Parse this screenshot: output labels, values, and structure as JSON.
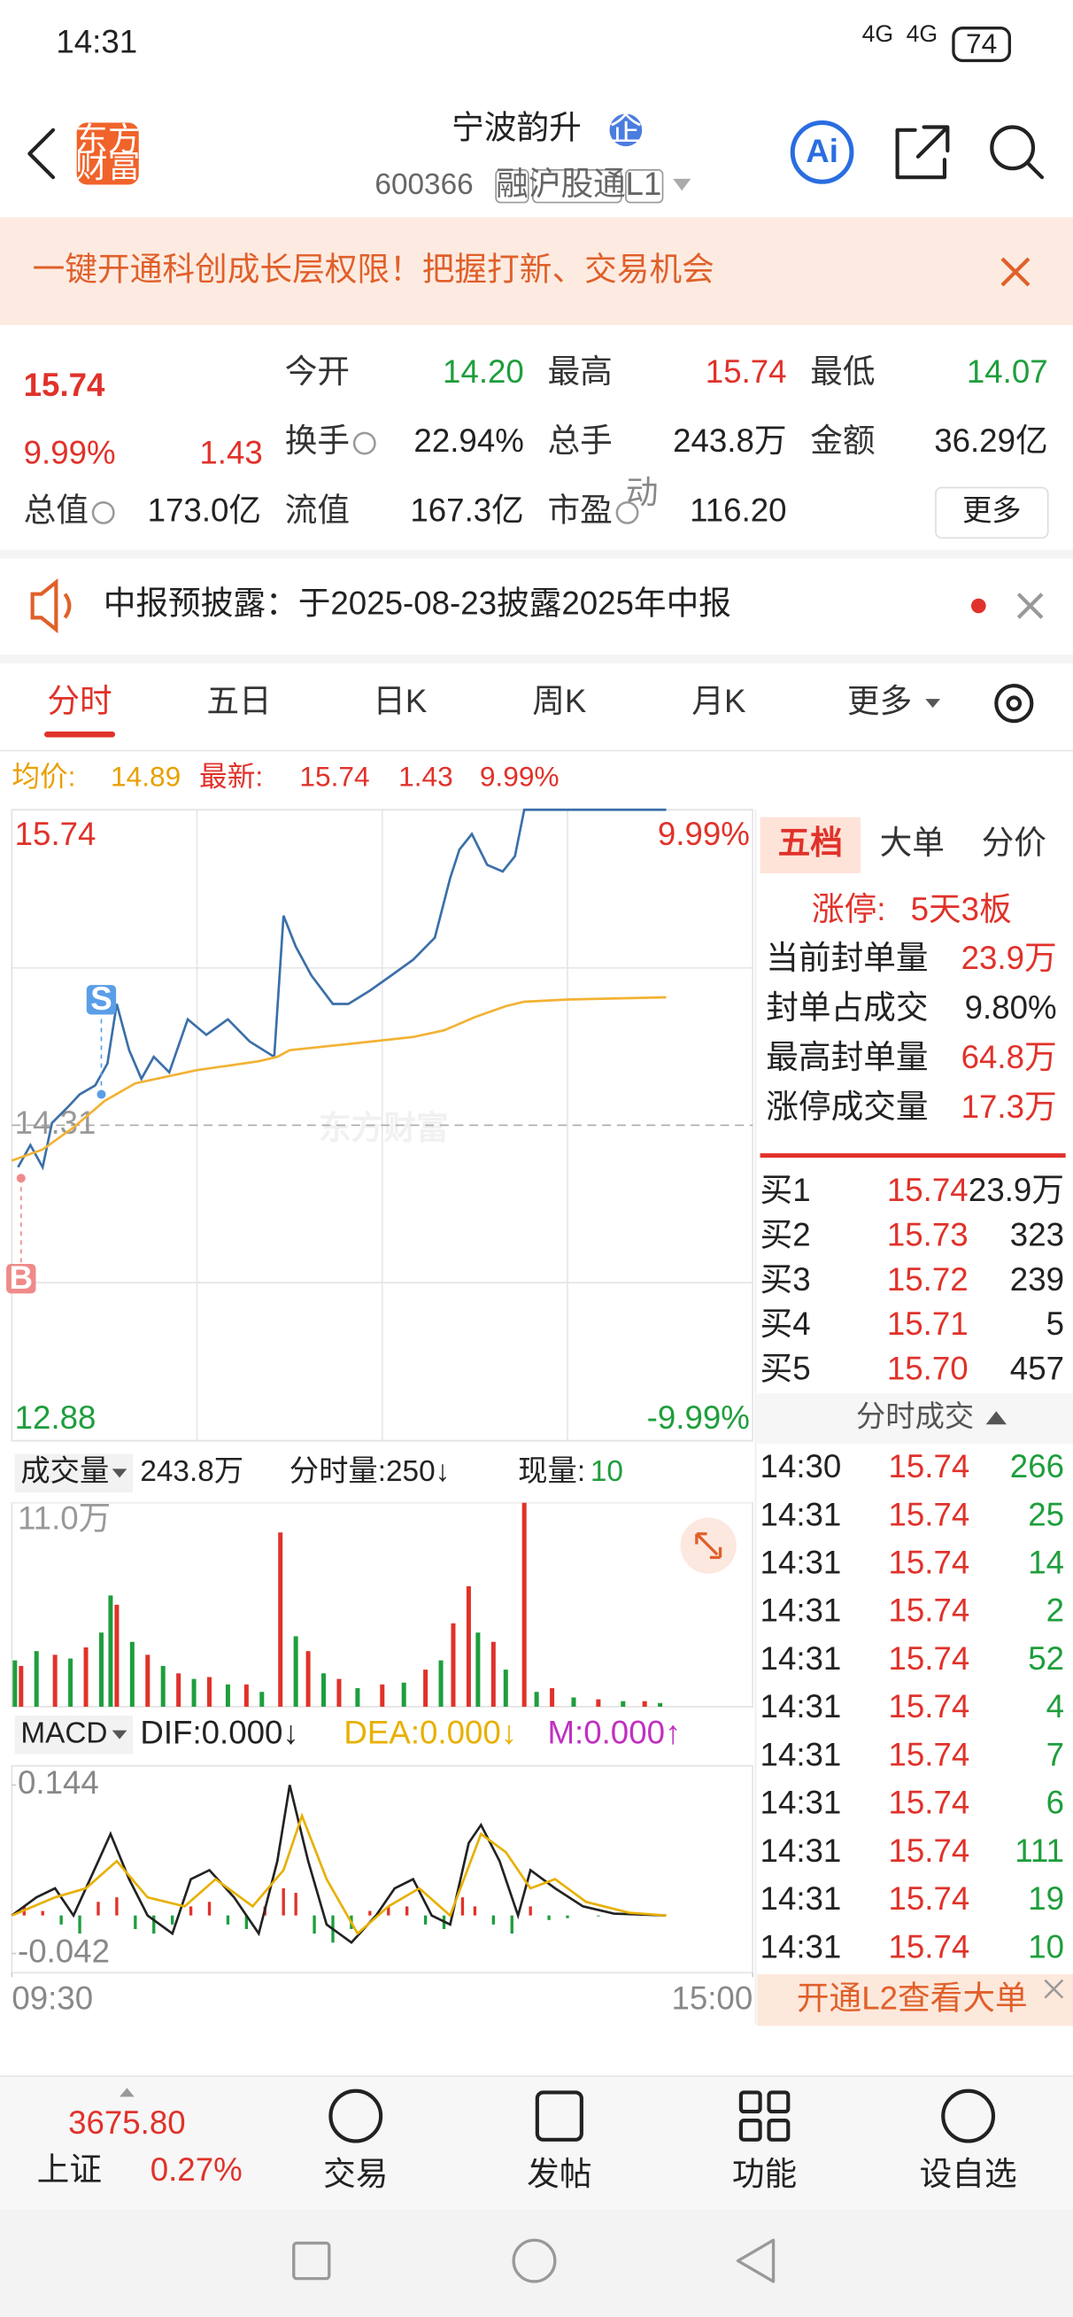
{
  "status_bar": {
    "time": "14:31",
    "signal": "4G",
    "battery": "74"
  },
  "header": {
    "logo": [
      "东方",
      "财富"
    ],
    "title": "宁波韵升",
    "badge": "企",
    "code": "600366",
    "tags": [
      "融",
      "沪股通",
      "L1"
    ],
    "ai": "Ai"
  },
  "promo": {
    "text": "一键开通科创成长层权限！把握打新、交易机会"
  },
  "quote": {
    "price": "15.74",
    "change_pct": "9.99%",
    "change": "1.43",
    "fields": [
      {
        "label": "今开",
        "value": "14.20",
        "color": "#1e9e3c"
      },
      {
        "label": "最高",
        "value": "15.74",
        "color": "#e0322a"
      },
      {
        "label": "最低",
        "value": "14.07",
        "color": "#1e9e3c"
      },
      {
        "label": "换手",
        "value": "22.94%"
      },
      {
        "label": "总手",
        "value": "243.8万"
      },
      {
        "label": "金额",
        "value": "36.29亿"
      },
      {
        "label": "总值",
        "value": "173.0亿"
      },
      {
        "label": "流值",
        "value": "167.3亿"
      },
      {
        "label": "市盈",
        "value": "116.20"
      }
    ],
    "superscript": "动",
    "more": "更多"
  },
  "notice": {
    "text": "中报预披露：于2025-08-23披露2025年中报"
  },
  "tabs": [
    "分时",
    "五日",
    "日K",
    "周K",
    "月K",
    "更多"
  ],
  "summary": {
    "avg_label": "均价:",
    "avg": "14.89",
    "last_label": "最新:",
    "last": "15.74",
    "change": "1.43",
    "change_pct": "9.99%"
  },
  "chart_data": [
    {
      "type": "line",
      "xlim": [
        0,
        240
      ],
      "ylim": [
        12.88,
        15.74
      ],
      "yticks": [
        15.74,
        14.31,
        12.88
      ],
      "y2lim": [
        -9.99,
        9.99
      ],
      "y2ticks": [
        {
          "value": 9.99,
          "label": "9.99%"
        },
        {
          "value": -9.99,
          "label": "-9.99%"
        }
      ],
      "series": [
        {
          "color": "#3b6fa8",
          "x": [
            2,
            6,
            10,
            13,
            18,
            22,
            27,
            31,
            34,
            38,
            42,
            46,
            51,
            57,
            63,
            70,
            77,
            85,
            88,
            92,
            97,
            104,
            109,
            116,
            123,
            130,
            137,
            142,
            145,
            149,
            154,
            159,
            163,
            166,
            212
          ],
          "values": [
            14.12,
            14.22,
            14.12,
            14.32,
            14.39,
            14.45,
            14.49,
            14.59,
            14.86,
            14.65,
            14.52,
            14.62,
            14.55,
            14.79,
            14.72,
            14.79,
            14.69,
            14.62,
            15.26,
            15.12,
            14.99,
            14.86,
            14.86,
            14.92,
            14.99,
            15.06,
            15.16,
            15.43,
            15.56,
            15.63,
            15.49,
            15.46,
            15.53,
            15.74,
            15.74
          ]
        },
        {
          "color": "#f2b233",
          "x": [
            0,
            10,
            20,
            30,
            40,
            50,
            60,
            80,
            86,
            90,
            110,
            130,
            140,
            150,
            160,
            166,
            180,
            212
          ],
          "values": [
            14.15,
            14.2,
            14.3,
            14.42,
            14.5,
            14.53,
            14.56,
            14.6,
            14.62,
            14.65,
            14.68,
            14.71,
            14.74,
            14.8,
            14.85,
            14.87,
            14.88,
            14.89
          ]
        }
      ],
      "annotations": [
        {
          "text": "S",
          "x": 29,
          "y": 14.45,
          "color": "#5a9ee8",
          "position": "above"
        },
        {
          "text": "B",
          "x": 3,
          "y": 14.07,
          "color": "#f08a8a",
          "position": "below"
        }
      ],
      "watermark": "东方财富"
    },
    {
      "type": "bar",
      "title": "成交量",
      "stats": [
        "243.8万",
        "分时量:250↓",
        "现量:"
      ],
      "current": "10",
      "xlim": [
        0,
        240
      ],
      "ylim": [
        0,
        11
      ],
      "yticks": [
        {
          "value": 11,
          "label": "11.0万"
        }
      ],
      "series": [
        {
          "color": "#e0322a",
          "x": [
            3,
            14,
            24,
            34,
            44,
            54,
            64,
            76,
            87,
            96,
            106,
            120,
            134,
            143,
            148,
            156,
            166,
            175,
            190,
            205
          ],
          "values": [
            2.2,
            2.8,
            3.2,
            5.5,
            2.8,
            1.8,
            1.6,
            1.2,
            9.4,
            3.0,
            1.5,
            1.2,
            2.0,
            4.5,
            6.5,
            3.5,
            11.0,
            1.0,
            0.4,
            0.3
          ]
        },
        {
          "color": "#1e9e3c",
          "x": [
            1,
            8,
            19,
            29,
            32,
            39,
            49,
            59,
            70,
            81,
            92,
            101,
            112,
            127,
            139,
            151,
            160,
            170,
            182,
            198,
            210
          ],
          "values": [
            2.5,
            3.0,
            2.6,
            4.0,
            6.0,
            3.5,
            2.2,
            1.5,
            1.2,
            0.8,
            3.8,
            1.8,
            1.0,
            1.3,
            2.5,
            4.0,
            2.0,
            0.8,
            0.5,
            0.3,
            0.2
          ]
        }
      ]
    },
    {
      "type": "macd",
      "title": "MACD",
      "indicators": [
        {
          "text": "DIF:0.000↓",
          "color": "#222222"
        },
        {
          "text": "DEA:0.000↓",
          "color": "#e8b000"
        },
        {
          "text": "M:0.000↑",
          "color": "#c030c0"
        }
      ],
      "xlim": [
        0,
        240
      ],
      "xticks": [
        {
          "value": 0,
          "label": "09:30"
        },
        {
          "value": 240,
          "label": "15:00"
        }
      ],
      "ylim": [
        -0.042,
        0.144
      ],
      "yticks": [
        0.144,
        -0.042
      ],
      "series": [
        {
          "color": "#222222",
          "x": [
            0,
            8,
            14,
            20,
            28,
            32,
            38,
            44,
            52,
            58,
            64,
            72,
            80,
            86,
            90,
            96,
            102,
            110,
            118,
            124,
            130,
            136,
            142,
            148,
            152,
            158,
            164,
            168,
            176,
            185,
            195,
            212
          ],
          "values": [
            0.0,
            0.02,
            0.03,
            0.0,
            0.06,
            0.09,
            0.04,
            0.0,
            -0.02,
            0.04,
            0.05,
            0.02,
            -0.02,
            0.06,
            0.144,
            0.06,
            -0.01,
            -0.03,
            0.0,
            0.03,
            0.04,
            0.0,
            -0.01,
            0.08,
            0.1,
            0.06,
            0.0,
            0.05,
            0.03,
            0.01,
            0.002,
            0.0
          ]
        },
        {
          "color": "#e8b000",
          "x": [
            0,
            14,
            24,
            34,
            44,
            56,
            66,
            78,
            88,
            94,
            102,
            112,
            122,
            132,
            142,
            152,
            160,
            168,
            176,
            186,
            200,
            212
          ],
          "values": [
            0.0,
            0.02,
            0.03,
            0.06,
            0.02,
            0.01,
            0.04,
            0.01,
            0.05,
            0.11,
            0.04,
            -0.02,
            0.01,
            0.03,
            0.0,
            0.09,
            0.07,
            0.03,
            0.04,
            0.015,
            0.003,
            0.0
          ]
        }
      ],
      "histogram": {
        "up_color": "#e0322a",
        "down_color": "#1e9e3c",
        "x": [
          4,
          10,
          16,
          22,
          28,
          34,
          40,
          46,
          52,
          58,
          64,
          70,
          76,
          82,
          88,
          92,
          98,
          104,
          110,
          116,
          122,
          128,
          134,
          140,
          146,
          150,
          156,
          162,
          168,
          174,
          180,
          190
        ],
        "values": [
          0.01,
          0.005,
          -0.01,
          -0.02,
          0.015,
          0.02,
          -0.015,
          -0.02,
          -0.01,
          0.01,
          0.015,
          -0.01,
          -0.015,
          0.01,
          0.03,
          0.025,
          -0.02,
          -0.03,
          -0.015,
          0.005,
          0.01,
          0.01,
          -0.01,
          -0.015,
          0.02,
          0.01,
          -0.01,
          -0.02,
          0.01,
          -0.005,
          -0.003,
          -0.001
        ]
      }
    }
  ],
  "order_panel": {
    "tabs": [
      "五档",
      "大单",
      "分价"
    ],
    "limit_label": "涨停:",
    "limit_value": "5天3板",
    "stats": [
      [
        "当前封单量",
        "23.9万"
      ],
      [
        "封单占成交",
        "9.80%"
      ],
      [
        "最高封单量",
        "64.8万"
      ],
      [
        "涨停成交量",
        "17.3万"
      ]
    ],
    "bids": [
      [
        "买1",
        "15.74",
        "23.9万"
      ],
      [
        "买2",
        "15.73",
        "323"
      ],
      [
        "买3",
        "15.72",
        "239"
      ],
      [
        "买4",
        "15.71",
        "5"
      ],
      [
        "买5",
        "15.70",
        "457"
      ]
    ],
    "trades_title": "分时成交",
    "trades": [
      [
        "14:30",
        "15.74",
        "266"
      ],
      [
        "14:31",
        "15.74",
        "25"
      ],
      [
        "14:31",
        "15.74",
        "14"
      ],
      [
        "14:31",
        "15.74",
        "2"
      ],
      [
        "14:31",
        "15.74",
        "52"
      ],
      [
        "14:31",
        "15.74",
        "4"
      ],
      [
        "14:31",
        "15.74",
        "7"
      ],
      [
        "14:31",
        "15.74",
        "6"
      ],
      [
        "14:31",
        "15.74",
        "111"
      ],
      [
        "14:31",
        "15.74",
        "19"
      ],
      [
        "14:31",
        "15.74",
        "10"
      ]
    ],
    "l2_banner": "开通L2查看大单"
  },
  "bottom_nav": {
    "index_value": "3675.80",
    "index_name": "上证",
    "index_change": "0.27%",
    "items": [
      "交易",
      "发帖",
      "功能",
      "设自选"
    ]
  }
}
